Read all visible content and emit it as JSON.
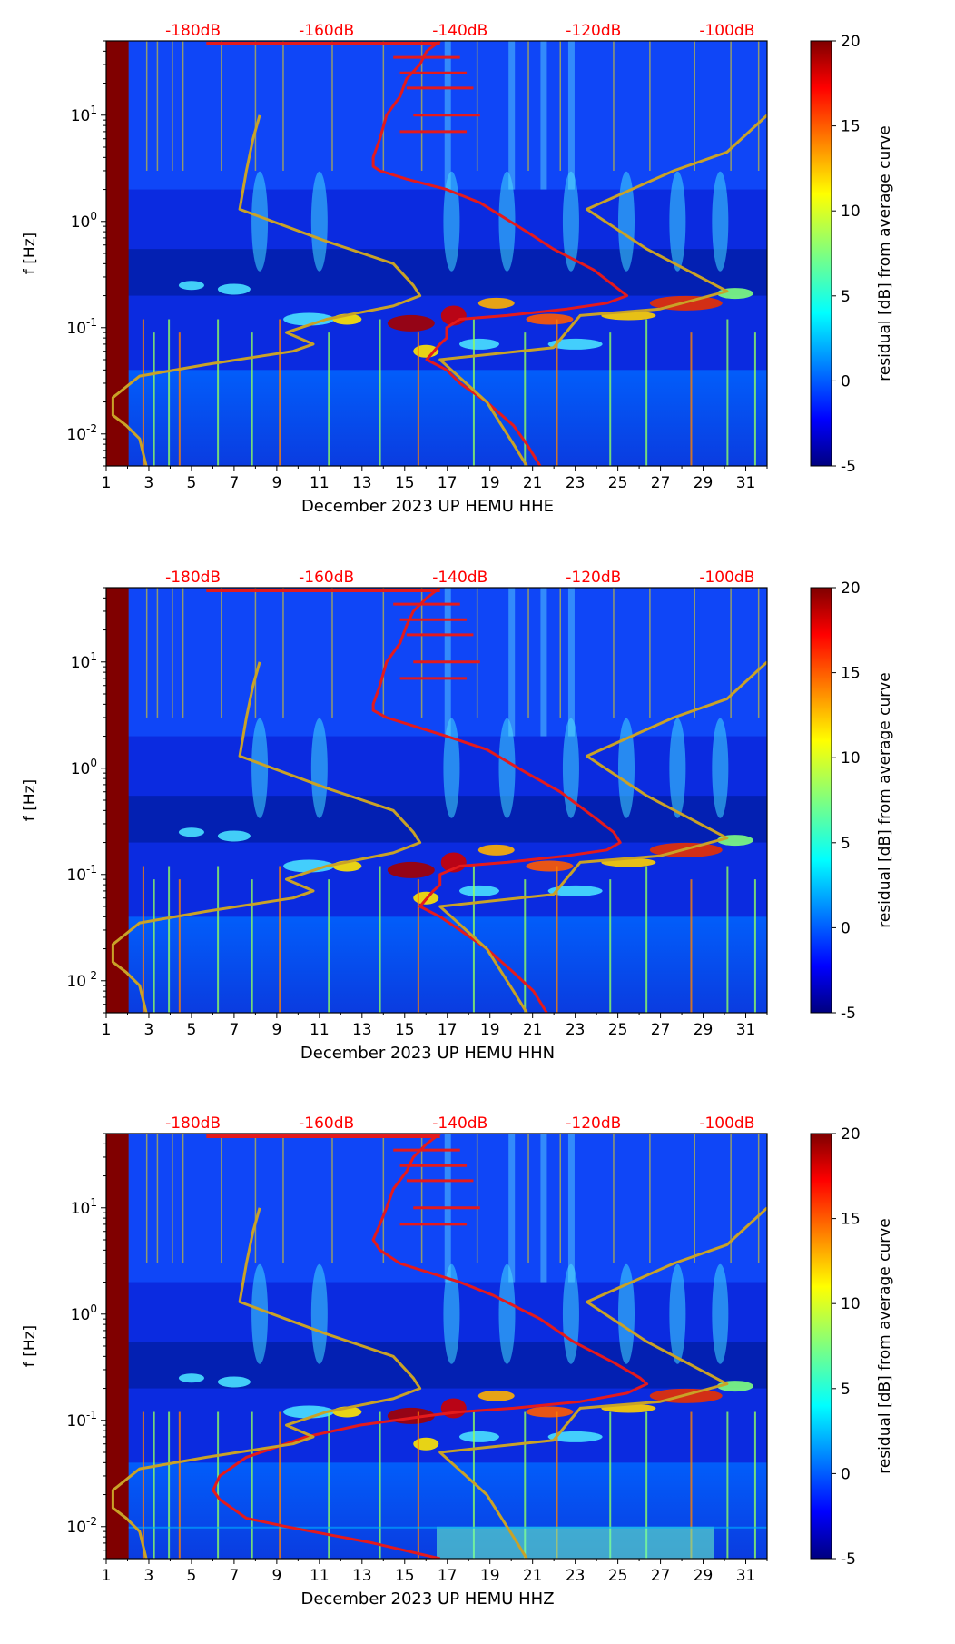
{
  "colorbar": {
    "label": "residual [dB] from average curve",
    "min": -5,
    "max": 20,
    "ticks": [
      -5,
      0,
      5,
      10,
      15,
      20
    ]
  },
  "chart_data": [
    {
      "type": "heatmap",
      "title": "",
      "xlabel": "December 2023 UP HEMU  HHE",
      "ylabel": "f [Hz]",
      "x_ticks": [
        "1",
        "3",
        "5",
        "7",
        "9",
        "11",
        "13",
        "15",
        "17",
        "19",
        "21",
        "23",
        "25",
        "27",
        "29",
        "31"
      ],
      "y_ticks": [
        {
          "label_base": "10",
          "exp": "-2",
          "value": 0.01
        },
        {
          "label_base": "10",
          "exp": "-1",
          "value": 0.1
        },
        {
          "label_base": "10",
          "exp": "0",
          "value": 1
        },
        {
          "label_base": "10",
          "exp": "1",
          "value": 10
        }
      ],
      "xlim": [
        1,
        32
      ],
      "ylim_hz": [
        0.005,
        50
      ],
      "top_axis_labels": [
        "-180dB",
        "-160dB",
        "-140dB",
        "-120dB",
        "-100dB"
      ],
      "top_axis_db": [
        -180,
        -160,
        -140,
        -120,
        -100
      ],
      "db_axis_day_range": [
        1,
        32
      ],
      "db_axis_db_range": [
        -193,
        -94
      ],
      "series": [
        {
          "name": "PSD average curve (red)",
          "color": "#e41a1c",
          "points": [
            [
              -143,
              50
            ],
            [
              -145,
              40
            ],
            [
              -146,
              30
            ],
            [
              -148,
              22
            ],
            [
              -149,
              15
            ],
            [
              -151,
              10
            ],
            [
              -152,
              6
            ],
            [
              -153,
              4
            ],
            [
              -153,
              3.3
            ],
            [
              -152,
              3
            ],
            [
              -148,
              2.5
            ],
            [
              -142,
              2
            ],
            [
              -137,
              1.5
            ],
            [
              -130,
              0.8
            ],
            [
              -126,
              0.55
            ],
            [
              -120,
              0.35
            ],
            [
              -117,
              0.25
            ],
            [
              -115,
              0.2
            ],
            [
              -118,
              0.17
            ],
            [
              -124,
              0.15
            ],
            [
              -133,
              0.13
            ],
            [
              -140,
              0.12
            ],
            [
              -142,
              0.1
            ],
            [
              -142,
              0.08
            ],
            [
              -143,
              0.07
            ],
            [
              -145,
              0.05
            ],
            [
              -142,
              0.04
            ],
            [
              -140,
              0.03
            ],
            [
              -136,
              0.02
            ],
            [
              -132,
              0.012
            ],
            [
              -130,
              0.008
            ],
            [
              -128,
              0.005
            ]
          ]
        },
        {
          "name": "Reference noise model (yellow)",
          "color": "#c9a227",
          "points": [
            [
              -170,
              10
            ],
            [
              -171,
              6
            ],
            [
              -172,
              3
            ],
            [
              -173,
              1.3
            ],
            [
              -160,
              0.65
            ],
            [
              -150,
              0.4
            ],
            [
              -147,
              0.25
            ],
            [
              -146,
              0.2
            ],
            [
              -150,
              0.16
            ],
            [
              -160,
              0.12
            ],
            [
              -166,
              0.09
            ],
            [
              -162,
              0.07
            ],
            [
              -165,
              0.06
            ],
            [
              -178,
              0.045
            ],
            [
              -188,
              0.035
            ],
            [
              -192,
              0.022
            ],
            [
              -192,
              0.015
            ],
            [
              -190,
              0.012
            ],
            [
              -188,
              0.009
            ],
            [
              -187,
              0.005
            ]
          ]
        },
        {
          "name": "Reference noise model upper (yellow)",
          "color": "#c9a227",
          "points": [
            [
              -94,
              10
            ],
            [
              -100,
              4.5
            ],
            [
              -108,
              3
            ],
            [
              -121,
              1.3
            ],
            [
              -112,
              0.55
            ],
            [
              -100,
              0.22
            ],
            [
              -110,
              0.15
            ],
            [
              -122,
              0.13
            ],
            [
              -126,
              0.065
            ],
            [
              -143,
              0.05
            ],
            [
              -136,
              0.02
            ],
            [
              -132,
              0.008
            ],
            [
              -130,
              0.005
            ]
          ]
        }
      ]
    },
    {
      "type": "heatmap",
      "title": "",
      "xlabel": "December 2023 UP HEMU  HHN",
      "ylabel": "f [Hz]",
      "x_ticks": [
        "1",
        "3",
        "5",
        "7",
        "9",
        "11",
        "13",
        "15",
        "17",
        "19",
        "21",
        "23",
        "25",
        "27",
        "29",
        "31"
      ],
      "y_ticks": [
        {
          "label_base": "10",
          "exp": "-2",
          "value": 0.01
        },
        {
          "label_base": "10",
          "exp": "-1",
          "value": 0.1
        },
        {
          "label_base": "10",
          "exp": "0",
          "value": 1
        },
        {
          "label_base": "10",
          "exp": "1",
          "value": 10
        }
      ],
      "xlim": [
        1,
        32
      ],
      "ylim_hz": [
        0.005,
        50
      ],
      "top_axis_labels": [
        "-180dB",
        "-160dB",
        "-140dB",
        "-120dB",
        "-100dB"
      ],
      "top_axis_db": [
        -180,
        -160,
        -140,
        -120,
        -100
      ],
      "db_axis_day_range": [
        1,
        32
      ],
      "db_axis_db_range": [
        -193,
        -94
      ],
      "series": [
        {
          "name": "PSD average curve (red)",
          "color": "#e41a1c",
          "points": [
            [
              -143,
              50
            ],
            [
              -145,
              40
            ],
            [
              -147,
              30
            ],
            [
              -148,
              22
            ],
            [
              -149,
              15
            ],
            [
              -151,
              10
            ],
            [
              -152,
              6
            ],
            [
              -153,
              4
            ],
            [
              -153,
              3.5
            ],
            [
              -151,
              3
            ],
            [
              -147,
              2.5
            ],
            [
              -142,
              2
            ],
            [
              -136,
              1.5
            ],
            [
              -130,
              0.9
            ],
            [
              -125,
              0.6
            ],
            [
              -120,
              0.35
            ],
            [
              -117,
              0.25
            ],
            [
              -116,
              0.2
            ],
            [
              -118,
              0.17
            ],
            [
              -124,
              0.15
            ],
            [
              -133,
              0.13
            ],
            [
              -140,
              0.12
            ],
            [
              -143,
              0.1
            ],
            [
              -143,
              0.08
            ],
            [
              -144,
              0.07
            ],
            [
              -146,
              0.05
            ],
            [
              -143,
              0.04
            ],
            [
              -140,
              0.03
            ],
            [
              -136,
              0.02
            ],
            [
              -132,
              0.012
            ],
            [
              -129,
              0.008
            ],
            [
              -127,
              0.005
            ]
          ]
        },
        {
          "name": "Reference noise model (yellow)",
          "color": "#c9a227",
          "points": [
            [
              -170,
              10
            ],
            [
              -171,
              6
            ],
            [
              -172,
              3
            ],
            [
              -173,
              1.3
            ],
            [
              -160,
              0.65
            ],
            [
              -150,
              0.4
            ],
            [
              -147,
              0.25
            ],
            [
              -146,
              0.2
            ],
            [
              -150,
              0.16
            ],
            [
              -160,
              0.12
            ],
            [
              -166,
              0.09
            ],
            [
              -162,
              0.07
            ],
            [
              -165,
              0.06
            ],
            [
              -178,
              0.045
            ],
            [
              -188,
              0.035
            ],
            [
              -192,
              0.022
            ],
            [
              -192,
              0.015
            ],
            [
              -190,
              0.012
            ],
            [
              -188,
              0.009
            ],
            [
              -187,
              0.005
            ]
          ]
        },
        {
          "name": "Reference noise model upper (yellow)",
          "color": "#c9a227",
          "points": [
            [
              -94,
              10
            ],
            [
              -100,
              4.5
            ],
            [
              -108,
              3
            ],
            [
              -121,
              1.3
            ],
            [
              -112,
              0.55
            ],
            [
              -100,
              0.22
            ],
            [
              -110,
              0.15
            ],
            [
              -122,
              0.13
            ],
            [
              -126,
              0.065
            ],
            [
              -143,
              0.05
            ],
            [
              -136,
              0.02
            ],
            [
              -132,
              0.008
            ],
            [
              -130,
              0.005
            ]
          ]
        }
      ]
    },
    {
      "type": "heatmap",
      "title": "",
      "xlabel": "December 2023 UP HEMU  HHZ",
      "ylabel": "f [Hz]",
      "x_ticks": [
        "1",
        "3",
        "5",
        "7",
        "9",
        "11",
        "13",
        "15",
        "17",
        "19",
        "21",
        "23",
        "25",
        "27",
        "29",
        "31"
      ],
      "y_ticks": [
        {
          "label_base": "10",
          "exp": "-2",
          "value": 0.01
        },
        {
          "label_base": "10",
          "exp": "-1",
          "value": 0.1
        },
        {
          "label_base": "10",
          "exp": "0",
          "value": 1
        },
        {
          "label_base": "10",
          "exp": "1",
          "value": 10
        }
      ],
      "xlim": [
        1,
        32
      ],
      "ylim_hz": [
        0.005,
        50
      ],
      "top_axis_labels": [
        "-180dB",
        "-160dB",
        "-140dB",
        "-120dB",
        "-100dB"
      ],
      "top_axis_db": [
        -180,
        -160,
        -140,
        -120,
        -100
      ],
      "db_axis_day_range": [
        1,
        32
      ],
      "db_axis_db_range": [
        -193,
        -94
      ],
      "series": [
        {
          "name": "PSD average curve (red)",
          "color": "#e41a1c",
          "points": [
            [
              -143,
              50
            ],
            [
              -145,
              40
            ],
            [
              -147,
              30
            ],
            [
              -148,
              22
            ],
            [
              -150,
              15
            ],
            [
              -151,
              10
            ],
            [
              -152,
              7
            ],
            [
              -153,
              5
            ],
            [
              -152,
              4
            ],
            [
              -149,
              3
            ],
            [
              -145,
              2.5
            ],
            [
              -140,
              2
            ],
            [
              -135,
              1.5
            ],
            [
              -128,
              0.9
            ],
            [
              -123,
              0.55
            ],
            [
              -117,
              0.35
            ],
            [
              -113,
              0.25
            ],
            [
              -112,
              0.22
            ],
            [
              -115,
              0.18
            ],
            [
              -122,
              0.15
            ],
            [
              -132,
              0.13
            ],
            [
              -140,
              0.12
            ],
            [
              -145,
              0.11
            ],
            [
              -155,
              0.09
            ],
            [
              -163,
              0.07
            ],
            [
              -172,
              0.045
            ],
            [
              -176,
              0.03
            ],
            [
              -177,
              0.022
            ],
            [
              -176,
              0.018
            ],
            [
              -172,
              0.012
            ],
            [
              -166,
              0.01
            ],
            [
              -153,
              0.007
            ],
            [
              -143,
              0.005
            ]
          ]
        },
        {
          "name": "Reference noise model (yellow)",
          "color": "#c9a227",
          "points": [
            [
              -170,
              10
            ],
            [
              -171,
              6
            ],
            [
              -172,
              3
            ],
            [
              -173,
              1.3
            ],
            [
              -160,
              0.65
            ],
            [
              -150,
              0.4
            ],
            [
              -147,
              0.25
            ],
            [
              -146,
              0.2
            ],
            [
              -150,
              0.16
            ],
            [
              -160,
              0.12
            ],
            [
              -166,
              0.09
            ],
            [
              -162,
              0.07
            ],
            [
              -165,
              0.06
            ],
            [
              -178,
              0.045
            ],
            [
              -188,
              0.035
            ],
            [
              -192,
              0.022
            ],
            [
              -192,
              0.015
            ],
            [
              -190,
              0.012
            ],
            [
              -188,
              0.009
            ],
            [
              -187,
              0.005
            ]
          ]
        },
        {
          "name": "Reference noise model upper (yellow)",
          "color": "#c9a227",
          "points": [
            [
              -94,
              10
            ],
            [
              -100,
              4.5
            ],
            [
              -108,
              3
            ],
            [
              -121,
              1.3
            ],
            [
              -112,
              0.55
            ],
            [
              -100,
              0.22
            ],
            [
              -110,
              0.15
            ],
            [
              -122,
              0.13
            ],
            [
              -126,
              0.065
            ],
            [
              -143,
              0.05
            ],
            [
              -136,
              0.02
            ],
            [
              -132,
              0.008
            ],
            [
              -130,
              0.005
            ]
          ]
        }
      ]
    }
  ]
}
